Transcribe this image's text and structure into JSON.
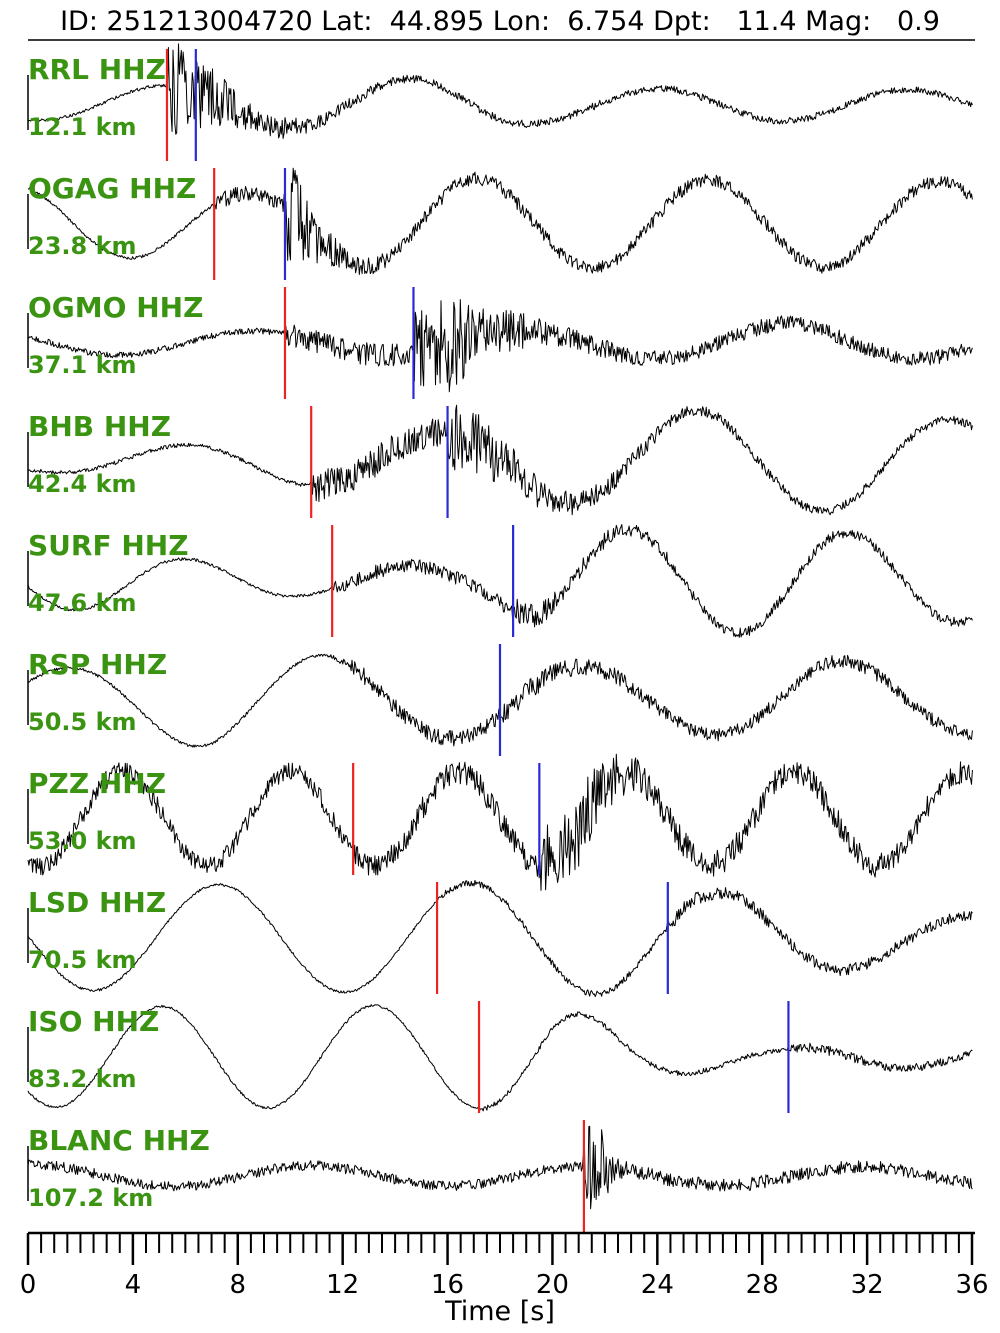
{
  "title": "ID: 251213004720 Lat:  44.895 Lon:  6.754 Dpt:   11.4 Mag:   0.9",
  "event": {
    "id": "251213004720",
    "lat": "44.895",
    "lon": "6.754",
    "depth_km": "11.4",
    "magnitude": "0.9"
  },
  "colors": {
    "station_label": "#3b9312",
    "red_pick": "#ee2222",
    "blue_pick": "#2a2ad8",
    "trace": "#000000",
    "axis": "#000000",
    "title_rule": "#3d3d3d"
  },
  "chart_data": {
    "type": "line",
    "subtype": "seismogram-record-section",
    "title": "ID: 251213004720 Lat:  44.895 Lon:  6.754 Dpt:   11.4 Mag:   0.9",
    "xlabel": "Time [s]",
    "x_range": [
      0,
      36
    ],
    "x_major_ticks": [
      0,
      4,
      8,
      12,
      16,
      20,
      24,
      28,
      32,
      36
    ],
    "x_minor_tick_step": 0.5,
    "grid": false,
    "legend": false,
    "stations": [
      {
        "label": "RRL HHZ",
        "distance_label": "12.1 km",
        "red_pick_s": 5.3,
        "blue_pick_s": 6.4,
        "wave": {
          "period_s": 9.5,
          "phase": 4.5,
          "amp_env": [
            [
              0,
              15
            ],
            [
              13,
              26
            ],
            [
              16,
              26
            ],
            [
              20,
              17
            ],
            [
              36,
              15
            ]
          ],
          "noise_env": [
            [
              0,
              1.5
            ],
            [
              5.25,
              1.5
            ],
            [
              5.35,
              52
            ],
            [
              6.6,
              36
            ],
            [
              8.5,
              16
            ],
            [
              11,
              7
            ],
            [
              14,
              4
            ],
            [
              36,
              3
            ]
          ]
        }
      },
      {
        "label": "OGAG HHZ",
        "distance_label": "23.8 km",
        "red_pick_s": 7.1,
        "blue_pick_s": 9.8,
        "wave": {
          "period_s": 8.8,
          "phase": 1.9,
          "amp_env": [
            [
              0,
              38
            ],
            [
              8,
              30
            ],
            [
              11,
              34
            ],
            [
              14,
              46
            ],
            [
              36,
              42
            ]
          ],
          "noise_env": [
            [
              0,
              1.5
            ],
            [
              7.05,
              1.5
            ],
            [
              7.15,
              8
            ],
            [
              9.75,
              8
            ],
            [
              9.85,
              56
            ],
            [
              10.6,
              34
            ],
            [
              12,
              12
            ],
            [
              14,
              7
            ],
            [
              36,
              6
            ]
          ]
        }
      },
      {
        "label": "OGMO HHZ",
        "distance_label": "37.1 km",
        "red_pick_s": 9.8,
        "blue_pick_s": 14.7,
        "wave": {
          "period_s": 10.2,
          "phase": 2.6,
          "amp_env": [
            [
              0,
              12
            ],
            [
              20,
              12
            ],
            [
              29,
              20
            ],
            [
              36,
              14
            ]
          ],
          "noise_env": [
            [
              0,
              3
            ],
            [
              9.75,
              3
            ],
            [
              9.85,
              12
            ],
            [
              14.6,
              11
            ],
            [
              14.75,
              40
            ],
            [
              15.8,
              52
            ],
            [
              17.5,
              26
            ],
            [
              20,
              11
            ],
            [
              24,
              8
            ],
            [
              36,
              7
            ]
          ]
        }
      },
      {
        "label": "BHB HHZ",
        "distance_label": "42.4 km",
        "red_pick_s": 10.8,
        "blue_pick_s": 16.0,
        "wave": {
          "period_s": 9.8,
          "phase": 4.1,
          "amp_env": [
            [
              0,
              9
            ],
            [
              11,
              24
            ],
            [
              16,
              30
            ],
            [
              20,
              40
            ],
            [
              26,
              52
            ],
            [
              33,
              48
            ],
            [
              36,
              40
            ]
          ],
          "noise_env": [
            [
              0,
              2
            ],
            [
              10.75,
              2
            ],
            [
              10.85,
              17
            ],
            [
              15.9,
              14
            ],
            [
              16.05,
              38
            ],
            [
              18,
              26
            ],
            [
              20,
              13
            ],
            [
              23,
              8
            ],
            [
              27,
              5
            ],
            [
              36,
              4
            ]
          ]
        }
      },
      {
        "label": "SURF HHZ",
        "distance_label": "47.6 km",
        "red_pick_s": 11.6,
        "blue_pick_s": 18.5,
        "wave": {
          "period_s": 8.4,
          "phase": 3.3,
          "amp_env": [
            [
              0,
              32
            ],
            [
              11,
              14
            ],
            [
              17,
              16
            ],
            [
              21,
              52
            ],
            [
              29,
              52
            ],
            [
              36,
              40
            ]
          ],
          "noise_env": [
            [
              0,
              1.5
            ],
            [
              11.55,
              1.5
            ],
            [
              11.65,
              7
            ],
            [
              18.4,
              7
            ],
            [
              18.55,
              15
            ],
            [
              21,
              9
            ],
            [
              25,
              5
            ],
            [
              36,
              5
            ]
          ]
        }
      },
      {
        "label": "RSP HHZ",
        "distance_label": "50.5 km",
        "red_pick_s": null,
        "blue_pick_s": 18.0,
        "wave": {
          "period_s": 9.9,
          "phase": 0.7,
          "amp_env": [
            [
              0,
              28
            ],
            [
              7,
              48
            ],
            [
              12,
              44
            ],
            [
              18,
              36
            ],
            [
              24,
              32
            ],
            [
              30,
              40
            ],
            [
              36,
              34
            ]
          ],
          "noise_env": [
            [
              0,
              1.5
            ],
            [
              11.5,
              1.5
            ],
            [
              12.5,
              8
            ],
            [
              17.95,
              8
            ],
            [
              18.05,
              12
            ],
            [
              21,
              9
            ],
            [
              26,
              6
            ],
            [
              36,
              7
            ]
          ]
        }
      },
      {
        "label": "PZZ HHZ",
        "distance_label": "53.0 km",
        "red_pick_s": 12.4,
        "blue_pick_s": 19.5,
        "wave": {
          "period_s": 6.4,
          "phase": 4.3,
          "amp_env": [
            [
              0,
              48
            ],
            [
              36,
              46
            ]
          ],
          "noise_env": [
            [
              0,
              9
            ],
            [
              12.35,
              9
            ],
            [
              12.45,
              12
            ],
            [
              19.45,
              12
            ],
            [
              19.55,
              46
            ],
            [
              21.5,
              36
            ],
            [
              23.5,
              15
            ],
            [
              36,
              11
            ]
          ]
        }
      },
      {
        "label": "LSD HHZ",
        "distance_label": "70.5 km",
        "red_pick_s": 15.6,
        "blue_pick_s": 24.4,
        "wave": {
          "period_s": 9.6,
          "phase": 3.1,
          "amp_env": [
            [
              0,
              52
            ],
            [
              22,
              56
            ],
            [
              28,
              42
            ],
            [
              33,
              26
            ],
            [
              36,
              22
            ]
          ],
          "noise_env": [
            [
              0,
              1.2
            ],
            [
              15.55,
              1.2
            ],
            [
              15.65,
              3
            ],
            [
              24.3,
              3
            ],
            [
              24.45,
              8
            ],
            [
              28,
              6
            ],
            [
              36,
              5
            ]
          ]
        }
      },
      {
        "label": "ISO HHZ",
        "distance_label": "83.2 km",
        "red_pick_s": 17.2,
        "blue_pick_s": 29.0,
        "wave": {
          "period_s": 8.1,
          "phase": 3.9,
          "amp_env": [
            [
              0,
              50
            ],
            [
              20,
              52
            ],
            [
              24,
              20
            ],
            [
              28,
              8
            ],
            [
              33,
              12
            ],
            [
              36,
              10
            ]
          ],
          "noise_env": [
            [
              0,
              1.2
            ],
            [
              17.15,
              1.2
            ],
            [
              17.25,
              2.5
            ],
            [
              28.95,
              2.5
            ],
            [
              29.05,
              5
            ],
            [
              36,
              4
            ]
          ]
        }
      },
      {
        "label": "BLANC HHZ",
        "distance_label": "107.2 km",
        "red_pick_s": 21.2,
        "blue_pick_s": null,
        "wave": {
          "period_s": 10.5,
          "phase": 1.4,
          "amp_env": [
            [
              0,
              11
            ],
            [
              36,
              9
            ]
          ],
          "noise_env": [
            [
              0,
              5
            ],
            [
              21.1,
              5
            ],
            [
              21.25,
              46
            ],
            [
              21.9,
              38
            ],
            [
              22.5,
              10
            ],
            [
              23.2,
              7
            ],
            [
              36,
              6
            ]
          ]
        }
      }
    ]
  }
}
